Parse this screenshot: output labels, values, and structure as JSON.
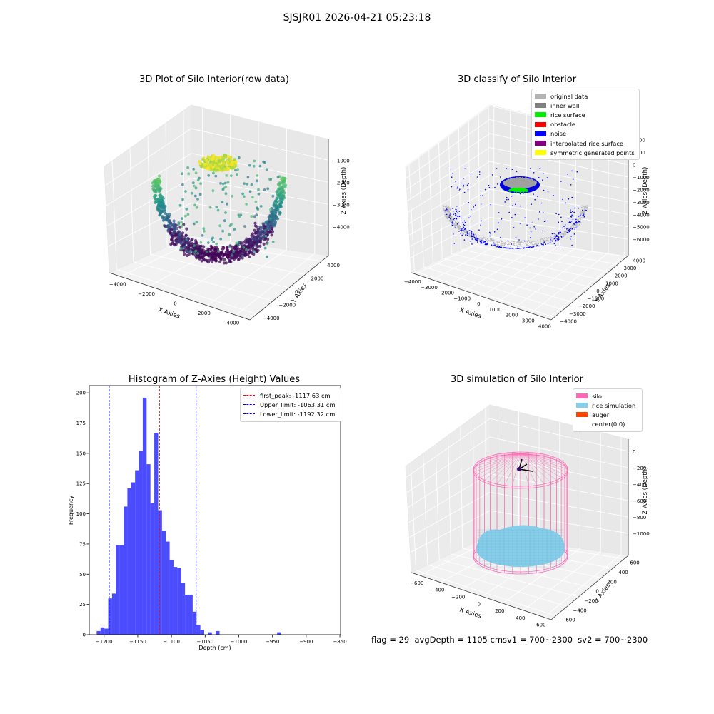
{
  "suptitle": "SJSJR01 2026-04-21 05:23:18",
  "footer": "flag = 29  avgDepth = 1105 cmsv1 = 700~2300  sv2 = 700~2300",
  "chart_data": [
    {
      "type": "scatter3d",
      "title": "3D Plot of Silo Interior(row data)",
      "xlabel": "X Axies",
      "ylabel": "Y Axies",
      "zlabel": "Z Axies (Depth)",
      "xticks": [
        "−4000",
        "−2000",
        "0",
        "2000",
        "4000"
      ],
      "yticks": [
        "−4000",
        "−2000",
        "0",
        "2000",
        "4000"
      ],
      "zticks": [
        "−4000",
        "−3000",
        "−2000",
        "−1000"
      ],
      "colormap": "viridis",
      "colors": {
        "low": "#440154",
        "mid": "#21918c",
        "high": "#fde725"
      }
    },
    {
      "type": "scatter3d",
      "title": "3D classify of Silo Interior",
      "xlabel": "X Axies",
      "ylabel": "Y Axies",
      "zlabel": "Z Axies (Depth)",
      "xticks": [
        "−4000",
        "−3000",
        "−2000",
        "−1000",
        "0",
        "1000",
        "2000",
        "3000",
        "4000"
      ],
      "yticks": [
        "−4000",
        "−3000",
        "−2000",
        "−1000",
        "0",
        "1000",
        "2000",
        "3000",
        "4000"
      ],
      "zticks": [
        "−6000",
        "−5000",
        "−4000",
        "−3000",
        "−2000",
        "−1000",
        "0",
        "1000",
        "2000"
      ],
      "legend": [
        {
          "label": "original data",
          "color": "#b3b3b3"
        },
        {
          "label": "inner wall",
          "color": "#808080"
        },
        {
          "label": "rice surface",
          "color": "#00ee00"
        },
        {
          "label": "obstacle",
          "color": "#ff0000"
        },
        {
          "label": "noise",
          "color": "#0000ff"
        },
        {
          "label": "interpolated rice surface",
          "color": "#800080"
        },
        {
          "label": "symmetric generated points",
          "color": "#ffff00"
        }
      ]
    },
    {
      "type": "histogram",
      "title": "Histogram of Z-Axies (Height) Values",
      "xlabel": "Depth (cm)",
      "ylabel": "Frequency",
      "xlim": [
        -1222,
        -849
      ],
      "ylim": [
        0,
        206
      ],
      "xticks": [
        -1200,
        -1150,
        -1100,
        -1050,
        -1000,
        -950,
        -900,
        -850
      ],
      "yticks": [
        0,
        25,
        50,
        75,
        100,
        125,
        150,
        175,
        200
      ],
      "bar_color": "#0000ff",
      "bins_start": -1211,
      "bin_width": 5.7,
      "values": [
        3,
        6,
        5,
        30,
        34,
        74,
        74,
        106,
        121,
        126,
        136,
        152,
        196,
        141,
        109,
        167,
        103,
        86,
        77,
        62,
        56,
        55,
        43,
        33,
        33,
        19,
        8,
        4,
        0,
        2,
        0,
        3,
        0,
        0,
        0,
        0,
        0,
        0,
        0,
        0,
        0,
        0,
        0,
        0,
        0,
        0,
        0,
        2
      ],
      "lines": [
        {
          "label": "first_peak: -1117.63 cm",
          "x": -1117.63,
          "color": "#ff0000"
        },
        {
          "label": "Upper_limit: -1063.31 cm",
          "x": -1063.31,
          "color": "#0000ff"
        },
        {
          "label": "Lower_limit: -1192.32 cm",
          "x": -1192.32,
          "color": "#0000ff"
        }
      ]
    },
    {
      "type": "surface3d",
      "title": "3D simulation of Silo Interior",
      "xlabel": "X Axies",
      "ylabel": "Y Axies",
      "zlabel": "Z Axies (Depth)",
      "xticks": [
        "−600",
        "−400",
        "−200",
        "0",
        "200",
        "400",
        "600"
      ],
      "yticks": [
        "−600",
        "−400",
        "−200",
        "0",
        "200",
        "400",
        "600"
      ],
      "zticks": [
        "−1000",
        "−800",
        "−600",
        "−400",
        "−200",
        "0"
      ],
      "legend": [
        {
          "label": "silo",
          "color": "#ff69b4"
        },
        {
          "label": "rice simulation",
          "color": "#87ceeb"
        },
        {
          "label": "auger",
          "color": "#ff4500"
        },
        {
          "label": "center(0,0)",
          "color": ""
        }
      ]
    }
  ]
}
